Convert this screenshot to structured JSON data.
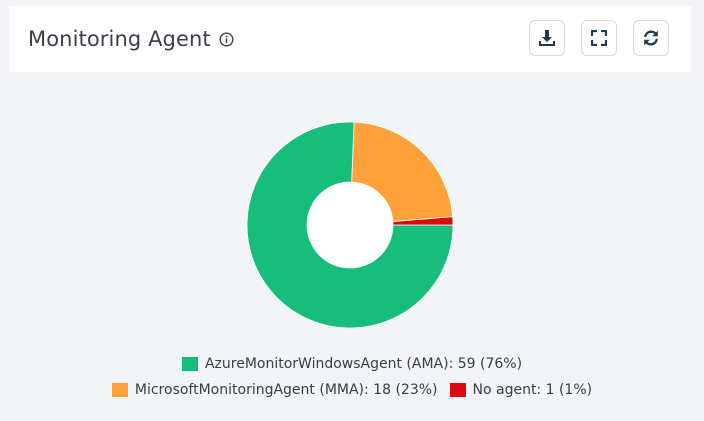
{
  "header": {
    "title": "Monitoring Agent",
    "info_icon": "info-circle-icon",
    "buttons": [
      {
        "name": "download",
        "icon": "download-icon"
      },
      {
        "name": "fullscreen",
        "icon": "expand-icon"
      },
      {
        "name": "refresh",
        "icon": "refresh-icon"
      }
    ]
  },
  "chart_data": {
    "type": "pie",
    "donut": true,
    "title": "",
    "legend_position": "bottom",
    "slices": [
      {
        "label": "AzureMonitorWindowsAgent (AMA): 59 (76%)",
        "value": 59,
        "color": "#16bd7b"
      },
      {
        "label": "MicrosoftMonitoringAgent (MMA): 18 (23%)",
        "value": 18,
        "color": "#fea13a"
      },
      {
        "label": "No agent: 1 (1%)",
        "value": 1,
        "color": "#dc0b0b"
      }
    ]
  },
  "colors": {
    "background": "#f3f4f8",
    "card": "#ffffff",
    "icon": "#1f3a4f"
  }
}
